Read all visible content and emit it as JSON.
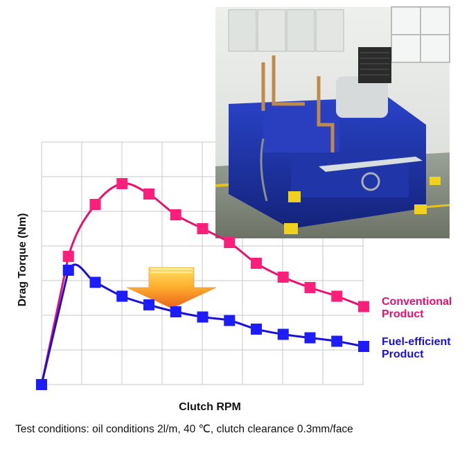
{
  "chart_data": {
    "type": "line",
    "title": "",
    "xlabel": "Clutch RPM",
    "ylabel": "Drag Torque (Nm)",
    "grid": true,
    "x": [
      0,
      1,
      2,
      3,
      4,
      5,
      6,
      7,
      8,
      9,
      10,
      11,
      12
    ],
    "series": [
      {
        "name_lines": [
          "Conventional",
          "Product"
        ],
        "color": "#e8106e",
        "values": [
          0,
          3.7,
          5.2,
          5.8,
          5.5,
          4.9,
          4.5,
          4.1,
          3.5,
          3.1,
          2.8,
          2.55,
          2.25
        ]
      },
      {
        "name_lines": [
          "Fuel-efficient",
          "Product"
        ],
        "color": "#1a10d0",
        "values": [
          0,
          3.3,
          2.95,
          2.55,
          2.3,
          2.1,
          1.95,
          1.85,
          1.6,
          1.45,
          1.35,
          1.25,
          1.1
        ]
      }
    ]
  },
  "caption": "Test conditions: oil conditions 2l/m, 40 ℃, clutch clearance 0.3mm/face",
  "photo": {
    "subject": "blue-test-rig-machine"
  },
  "arrow": {
    "meaning": "reduction",
    "gradient_colors": [
      "#ffd34d",
      "#f07a10"
    ]
  },
  "colors": {
    "grid": "#c9c9c9",
    "conventional": "#e8106e",
    "fuel_efficient": "#1a10d0",
    "marker_conventional": "#ff1f7a",
    "marker_fuel_efficient": "#1c1cff"
  }
}
